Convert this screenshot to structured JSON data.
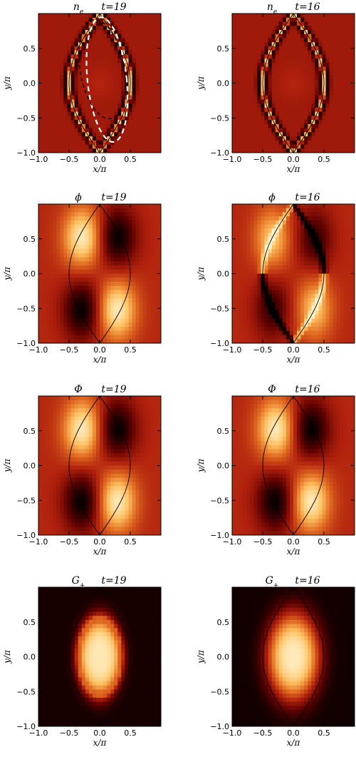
{
  "figure": {
    "colormap": [
      "#000000",
      "#5a0000",
      "#b0200d",
      "#e06a20",
      "#ffc060",
      "#fff4d0"
    ],
    "separatrix_color": "#000000",
    "dashed_white": "#ffffff",
    "dashed_black": "#000000"
  },
  "chart_data": [
    {
      "type": "heatmap",
      "variable": "n_e",
      "t": 19,
      "title_var": "n",
      "title_sub": "e",
      "title_time": "t=19",
      "xlabel": "x/π",
      "ylabel": "y/π",
      "xlim": [
        -1.0,
        1.0
      ],
      "ylim": [
        -1.0,
        1.0
      ],
      "xticks": [
        "−1.0",
        "−0.5",
        "0.0",
        "0.5"
      ],
      "yticks": [
        "−1.0",
        "−0.5",
        "0.0",
        "0.5"
      ],
      "pattern": "ne",
      "annotations": [
        "white dashed ellipse contour",
        "black dashed ellipse contour"
      ]
    },
    {
      "type": "heatmap",
      "variable": "n_e",
      "t": 16,
      "title_var": "n",
      "title_sub": "e",
      "title_time": "t=16",
      "xlabel": "x/π",
      "ylabel": "y/π",
      "xlim": [
        -1.0,
        1.0
      ],
      "ylim": [
        -1.0,
        1.0
      ],
      "xticks": [
        "−1.0",
        "−0.5",
        "0.0",
        "0.5"
      ],
      "yticks": [
        "−1.0",
        "−0.5",
        "0.0",
        "0.5"
      ],
      "pattern": "ne"
    },
    {
      "type": "heatmap",
      "variable": "φ",
      "t": 19,
      "title_var": "ϕ",
      "title_sub": "",
      "title_time": "t=19",
      "xlabel": "x/π",
      "ylabel": "y/π",
      "xlim": [
        -1.0,
        1.0
      ],
      "ylim": [
        -1.0,
        1.0
      ],
      "xticks": [
        "−1.0",
        "−0.5",
        "0.0",
        "0.5"
      ],
      "yticks": [
        "−1.0",
        "−0.5",
        "0.0",
        "0.5"
      ],
      "pattern": "quad"
    },
    {
      "type": "heatmap",
      "variable": "φ",
      "t": 16,
      "title_var": "ϕ",
      "title_sub": "",
      "title_time": "t=16",
      "xlabel": "x/π",
      "ylabel": "y/π",
      "xlim": [
        -1.0,
        1.0
      ],
      "ylim": [
        -1.0,
        1.0
      ],
      "xticks": [
        "−1.0",
        "−0.5",
        "0.0",
        "0.5"
      ],
      "yticks": [
        "−1.0",
        "−0.5",
        "0.0",
        "0.5"
      ],
      "pattern": "quad_sep"
    },
    {
      "type": "heatmap",
      "variable": "Φ",
      "t": 19,
      "title_var": "Φ",
      "title_sub": "",
      "title_time": "t=19",
      "xlabel": "x/π",
      "ylabel": "y/π",
      "xlim": [
        -1.0,
        1.0
      ],
      "ylim": [
        -1.0,
        1.0
      ],
      "xticks": [
        "−1.0",
        "−0.5",
        "0.0",
        "0.5"
      ],
      "yticks": [
        "−1.0",
        "−0.5",
        "0.0",
        "0.5"
      ],
      "pattern": "quad"
    },
    {
      "type": "heatmap",
      "variable": "Φ",
      "t": 16,
      "title_var": "Φ",
      "title_sub": "",
      "title_time": "t=16",
      "xlabel": "x/π",
      "ylabel": "y/π",
      "xlim": [
        -1.0,
        1.0
      ],
      "ylim": [
        -1.0,
        1.0
      ],
      "xticks": [
        "−1.0",
        "−0.5",
        "0.0",
        "0.5"
      ],
      "yticks": [
        "−1.0",
        "−0.5",
        "0.0",
        "0.5"
      ],
      "pattern": "quad"
    },
    {
      "type": "heatmap",
      "variable": "G_+",
      "t": 19,
      "title_var": "G",
      "title_sub": "+",
      "title_time": "t=19",
      "xlabel": "x/π",
      "ylabel": "y/π",
      "xlim": [
        -1.0,
        1.0
      ],
      "ylim": [
        -1.0,
        1.0
      ],
      "xticks": [
        "−1.0",
        "−0.5",
        "0.0",
        "0.5"
      ],
      "yticks": [
        "−1.0",
        "−0.5",
        "0.0",
        "0.5"
      ],
      "pattern": "g_ring"
    },
    {
      "type": "heatmap",
      "variable": "G_+",
      "t": 16,
      "title_var": "G",
      "title_sub": "+",
      "title_time": "t=16",
      "xlabel": "x/π",
      "ylabel": "y/π",
      "xlim": [
        -1.0,
        1.0
      ],
      "ylim": [
        -1.0,
        1.0
      ],
      "xticks": [
        "−1.0",
        "−0.5",
        "0.0",
        "0.5"
      ],
      "yticks": [
        "−1.0",
        "−0.5",
        "0.0",
        "0.5"
      ],
      "pattern": "g_blob"
    }
  ]
}
